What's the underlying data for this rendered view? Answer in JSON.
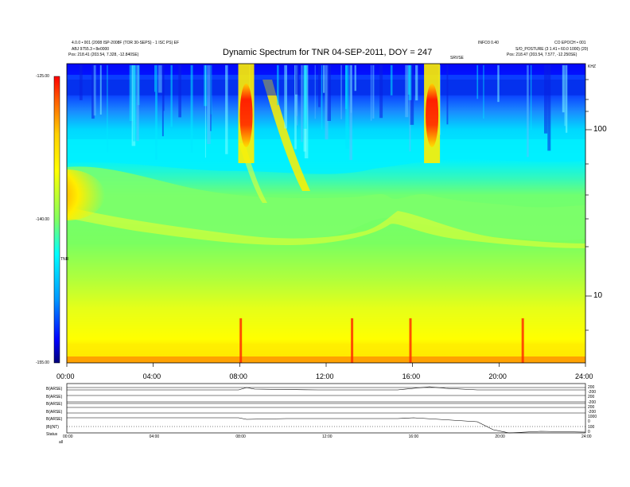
{
  "header": {
    "title": "Dynamic Spectrum for TNR 04-SEP-2011, DOY = 247",
    "left_line1": "4.0.0 • 001 (2008 ISP-2008F (TOR 30-SEPS) - 1 ISC PS) EF",
    "left_line2": "ABJ 9755.3 • 8e0000",
    "left_line3": "Pos:    218.41 (203.54, 7.328, -12.840SE)",
    "right_tag1": "INFO3 0.40",
    "right_tag2": "CO EPOCH • 001",
    "right_line2": "S/O_POSTURE (3 1.41 • 60.0 1000) (20)",
    "right_line3": "Pos:    218.47 (203.54, 7.577, -12.250SE)",
    "upper_small": "SRVSE",
    "corner_small": "KHZ"
  },
  "chart_data": {
    "type": "heatmap",
    "title": "Dynamic Spectrum for TNR 04-SEP-2011, DOY = 247",
    "x_ticks": [
      "00:00",
      "04:00",
      "08:00",
      "12:00",
      "16:00",
      "20:00",
      "24:00"
    ],
    "x_range_hours": [
      0,
      24
    ],
    "y_scale": "log",
    "y_ticks": [
      "100",
      "10"
    ],
    "y_unit": "KHZ",
    "colorbar": {
      "ticks": [
        "-125.00",
        "-140.00",
        "-155.00"
      ],
      "range": [
        -155,
        -125
      ],
      "label": "TNR",
      "colors": [
        "#00007a",
        "#0000ff",
        "#00c8ff",
        "#00ffff",
        "#7fff7f",
        "#ffff00",
        "#ff9a00",
        "#ff0000"
      ]
    },
    "features": {
      "bursts_hours": [
        8.3,
        16.9
      ],
      "spike_hours": [
        8.05,
        13.2,
        15.9,
        21.1
      ],
      "high_band_color": "#0a3dff",
      "mid_band_color": "#00ecff",
      "low_band_color": "#58ff58",
      "bottom_band_color": "#ffee00"
    }
  },
  "subpanel": {
    "row_labels": [
      "B(ARSE)",
      "B(ARSE)",
      "B(ARSE)",
      "B(ARSE)",
      "B(ARSE)",
      "|B|(NT)",
      "Status"
    ],
    "right_labels": [
      "200",
      "-200",
      "200",
      "-200",
      "200",
      "-200",
      "1000",
      "0",
      "100",
      "0"
    ],
    "status_value": "all",
    "x_ticks": [
      "00:00",
      "04:00",
      "08:00",
      "12:00",
      "16:00",
      "20:00",
      "24:00"
    ]
  }
}
